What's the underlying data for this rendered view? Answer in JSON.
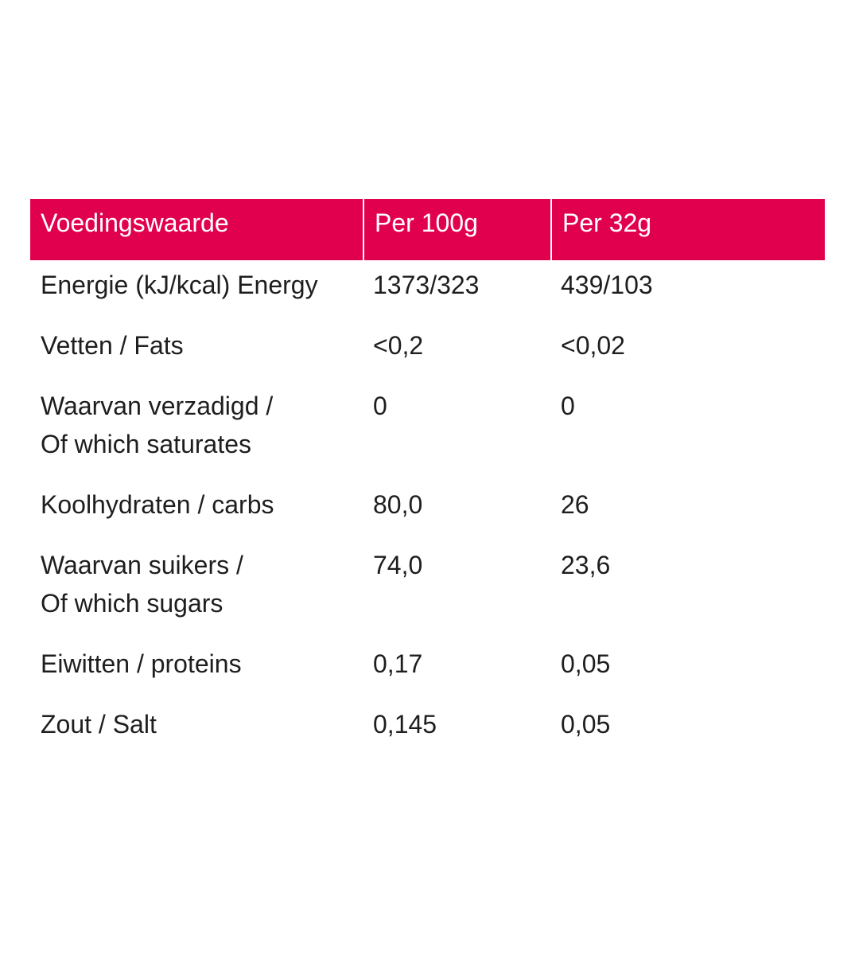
{
  "table": {
    "header": [
      "Voedingswaarde",
      "Per 100g",
      "Per 32g"
    ],
    "rows": [
      [
        [
          "Energie (kJ/kcal) Energy"
        ],
        "1373/323",
        "439/103"
      ],
      [
        [
          "Vetten / Fats"
        ],
        "<0,2",
        "<0,02"
      ],
      [
        [
          "Waarvan verzadigd /",
          "Of which saturates"
        ],
        "0",
        "0"
      ],
      [
        [
          "Koolhydraten / carbs"
        ],
        "80,0",
        "26"
      ],
      [
        [
          "Waarvan suikers /",
          "Of which sugars"
        ],
        "74,0",
        "23,6"
      ],
      [
        [
          "Eiwitten / proteins"
        ],
        "0,17",
        "0,05"
      ],
      [
        [
          "Zout / Salt"
        ],
        "0,145",
        "0,05"
      ]
    ]
  }
}
